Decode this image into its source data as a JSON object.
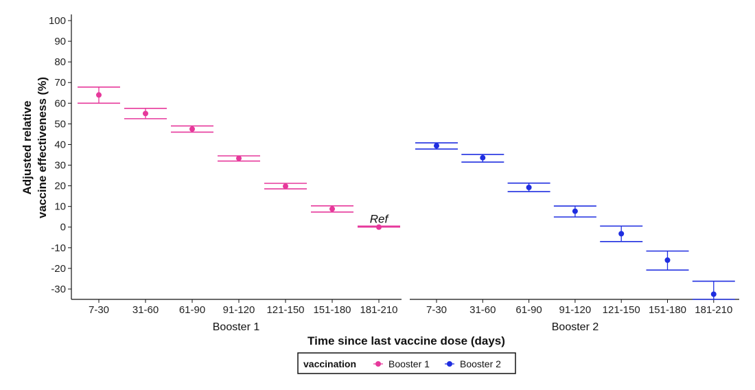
{
  "chart_data": {
    "type": "scatter",
    "ylabel_lines": [
      "Adjusted relative",
      "vaccine effectiveness (%)"
    ],
    "xlabel": "Time since last vaccine dose (days)",
    "ylim": [
      -35,
      103
    ],
    "yticks": [
      -30,
      -20,
      -10,
      0,
      10,
      20,
      30,
      40,
      50,
      60,
      70,
      80,
      90,
      100
    ],
    "grid": false,
    "facets": [
      {
        "label": "Booster 1",
        "series": "Booster 1",
        "categories": [
          "7-30",
          "31-60",
          "61-90",
          "91-120",
          "121-150",
          "151-180",
          "181-210"
        ],
        "estimate": [
          64,
          55,
          47.5,
          33.3,
          19.8,
          8.8,
          0
        ],
        "lower": [
          60,
          52.5,
          46,
          32,
          18.5,
          7.3,
          0
        ],
        "upper": [
          67.8,
          57.5,
          49,
          34.5,
          21.2,
          10.3,
          0.5
        ],
        "annotation": {
          "category": "181-210",
          "text": "Ref"
        }
      },
      {
        "label": "Booster 2",
        "series": "Booster 2",
        "categories": [
          "7-30",
          "31-60",
          "61-90",
          "91-120",
          "121-150",
          "151-180",
          "181-210"
        ],
        "estimate": [
          39.4,
          33.6,
          19.2,
          7.7,
          -3.2,
          -16,
          -32.5
        ],
        "lower": [
          37.8,
          31.5,
          17.2,
          4.9,
          -7,
          -20.8,
          -35
        ],
        "upper": [
          40.8,
          35.2,
          21.3,
          10.2,
          0.5,
          -11.6,
          -26.2
        ]
      }
    ],
    "legend": {
      "title": "vaccination",
      "placement": "bottom",
      "entries": [
        {
          "name": "Booster 1",
          "color": "#e6389b"
        },
        {
          "name": "Booster 2",
          "color": "#1f2ee0"
        }
      ]
    },
    "colors": {
      "Booster 1": "#e6389b",
      "Booster 2": "#1f2ee0"
    }
  }
}
